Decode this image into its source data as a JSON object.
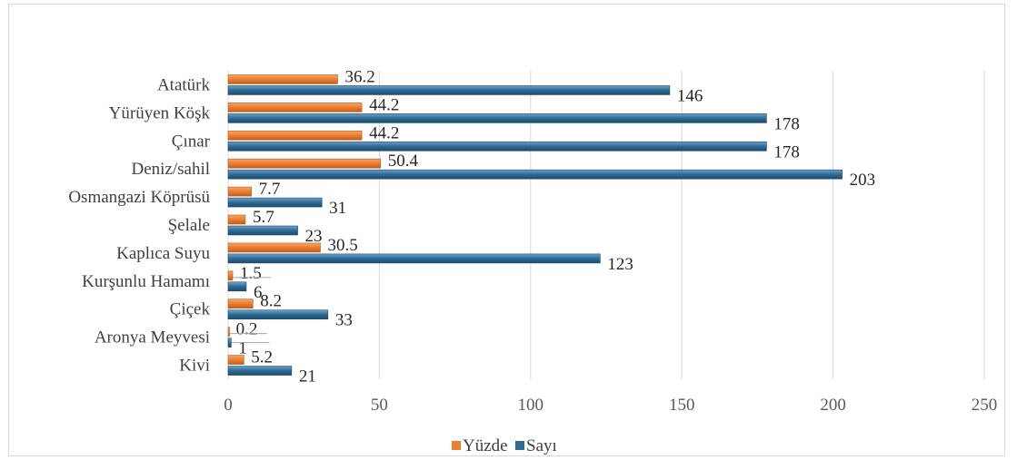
{
  "chart_data": {
    "type": "bar",
    "orientation": "horizontal",
    "categories": [
      "Atatürk",
      "Yürüyen Köşk",
      "Çınar",
      "Deniz/sahil",
      "Osmangazi Köprüsü",
      "Şelale",
      "Kaplıca Suyu",
      "Kurşunlu Hamamı",
      "Çiçek",
      "Aronya Meyvesi",
      "Kivi"
    ],
    "series": [
      {
        "name": "Yüzde",
        "color": "#ed7d31",
        "values": [
          36.2,
          44.2,
          44.2,
          50.4,
          7.7,
          5.7,
          30.5,
          1.5,
          8.2,
          0.2,
          5.2
        ],
        "labels": [
          "36.2",
          "44.2",
          "44.2",
          "50.4",
          "7.7",
          "5.7",
          "30.5",
          "1.5",
          "8.2",
          "0.2",
          "5.2"
        ]
      },
      {
        "name": "Sayı",
        "color": "#2e6b94",
        "values": [
          146,
          178,
          178,
          203,
          31,
          23,
          123,
          6,
          33,
          1,
          21
        ],
        "labels": [
          "146",
          "178",
          "178",
          "203",
          "31",
          "23",
          "123",
          "6",
          "33",
          "1",
          "21"
        ]
      }
    ],
    "xlim": [
      0,
      250
    ],
    "xticks": [
      "0",
      "50",
      "100",
      "150",
      "200",
      "250"
    ],
    "title": "",
    "xlabel": "",
    "ylabel": "",
    "grid": true,
    "legend_position": "bottom"
  }
}
